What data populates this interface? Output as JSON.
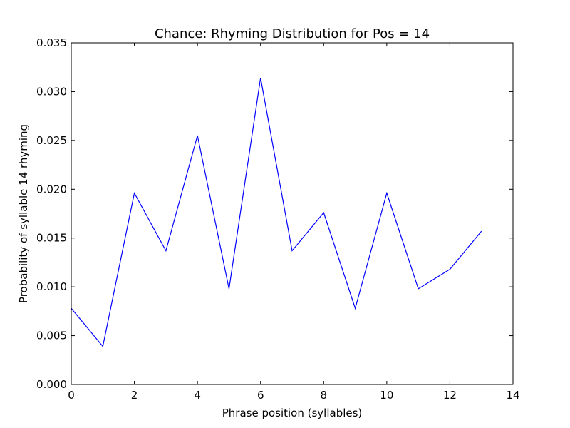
{
  "chart_data": {
    "type": "line",
    "title": "Chance: Rhyming Distribution for Pos = 14",
    "xlabel": "Phrase position (syllables)",
    "ylabel": "Probability of syllable 14 rhyming",
    "xlim": [
      0,
      14
    ],
    "ylim": [
      0,
      0.035
    ],
    "xticks": [
      0,
      2,
      4,
      6,
      8,
      10,
      12,
      14
    ],
    "xtick_labels": [
      "0",
      "2",
      "4",
      "6",
      "8",
      "10",
      "12",
      "14"
    ],
    "yticks": [
      0,
      0.005,
      0.01,
      0.015,
      0.02,
      0.025,
      0.03,
      0.035
    ],
    "ytick_labels": [
      "0.000",
      "0.005",
      "0.010",
      "0.015",
      "0.020",
      "0.025",
      "0.030",
      "0.035"
    ],
    "grid": false,
    "series": [
      {
        "color": "#0000ff",
        "x": [
          0,
          1,
          2,
          3,
          4,
          5,
          6,
          7,
          8,
          9,
          10,
          11,
          12,
          13
        ],
        "y": [
          0.0078,
          0.0039,
          0.0196,
          0.0137,
          0.0255,
          0.0098,
          0.0314,
          0.0137,
          0.0176,
          0.0078,
          0.0196,
          0.0098,
          0.0118,
          0.0157
        ]
      }
    ]
  }
}
